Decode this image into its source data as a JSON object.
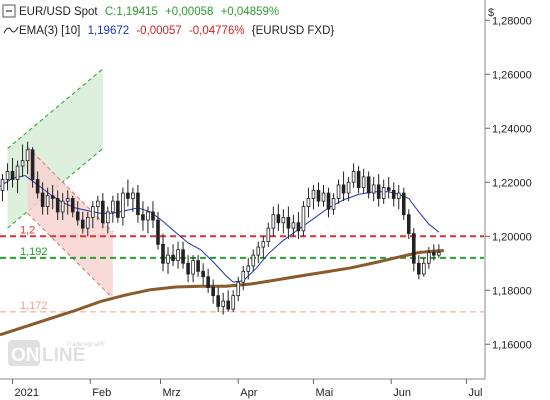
{
  "legend": {
    "line1": {
      "name": "EUR/USD Spot",
      "quote": "C:1,19415",
      "change": "+0,00058",
      "change_pct": "+0,04859%",
      "quote_color": "#2e9e2e"
    },
    "line2": {
      "name": "EMA(3) [10]",
      "value": "1,19672",
      "change": "-0,00057",
      "change_pct": "-0,04776%",
      "symbol": "{EURUSD FXD}",
      "value_color": "#1a2fb8",
      "change_color": "#d21f1f"
    }
  },
  "watermark": {
    "line1": "ON",
    "line2": "LINE",
    "small": "Tradesignal®"
  },
  "chart_data": {
    "type": "candlestick",
    "currency_label": "$",
    "y_ticks": [
      {
        "value": 1.28,
        "label": "1,28000"
      },
      {
        "value": 1.26,
        "label": "1,26000"
      },
      {
        "value": 1.24,
        "label": "1,24000"
      },
      {
        "value": 1.22,
        "label": "1,22000"
      },
      {
        "value": 1.2,
        "label": "1,20000"
      },
      {
        "value": 1.18,
        "label": "1,18000"
      },
      {
        "value": 1.16,
        "label": "1,16000"
      }
    ],
    "ylim": [
      1.1475,
      1.2875
    ],
    "x_ticks": [
      {
        "label": "2021",
        "day": 0
      },
      {
        "label": "Feb",
        "day": 31
      },
      {
        "label": "Mrz",
        "day": 59
      },
      {
        "label": "Apr",
        "day": 90
      },
      {
        "label": "Mai",
        "day": 120
      },
      {
        "label": "Jun",
        "day": 151
      },
      {
        "label": "Jul",
        "day": 181
      }
    ],
    "xlim": [
      -5,
      188
    ],
    "levels": [
      {
        "value": 1.2,
        "label": "1,2",
        "color": "#e03030"
      },
      {
        "value": 1.192,
        "label": "1,192",
        "color": "#22a02a"
      },
      {
        "value": 1.172,
        "label": "1,172",
        "color": "#f0a090"
      }
    ],
    "channels": [
      {
        "kind": "up",
        "x1": -2,
        "y1": 1.203,
        "x2": 36,
        "y2": 1.2325,
        "width": 0.0295,
        "color": "#22a02a",
        "fill": "#d4ecd4"
      },
      {
        "kind": "down",
        "x1": 6,
        "y1": 1.233,
        "x2": 40,
        "y2": 1.2015,
        "width": 0.0245,
        "color": "#e07070",
        "fill": "#f6d2d0"
      }
    ],
    "ema_fast": [
      [
        -5,
        1.2185
      ],
      [
        0,
        1.2215
      ],
      [
        5,
        1.2225
      ],
      [
        10,
        1.219
      ],
      [
        15,
        1.2155
      ],
      [
        20,
        1.2125
      ],
      [
        25,
        1.2105
      ],
      [
        30,
        1.2095
      ],
      [
        35,
        1.2085
      ],
      [
        40,
        1.2085
      ],
      [
        45,
        1.2095
      ],
      [
        50,
        1.2105
      ],
      [
        55,
        1.209
      ],
      [
        60,
        1.2055
      ],
      [
        65,
        1.2015
      ],
      [
        70,
        1.1975
      ],
      [
        75,
        1.195
      ],
      [
        80,
        1.1905
      ],
      [
        85,
        1.1855
      ],
      [
        88,
        1.183
      ],
      [
        92,
        1.1835
      ],
      [
        97,
        1.188
      ],
      [
        102,
        1.1935
      ],
      [
        108,
        1.1985
      ],
      [
        114,
        1.2025
      ],
      [
        120,
        1.2065
      ],
      [
        126,
        1.2105
      ],
      [
        132,
        1.2135
      ],
      [
        138,
        1.2155
      ],
      [
        144,
        1.2165
      ],
      [
        150,
        1.2165
      ],
      [
        154,
        1.2155
      ],
      [
        158,
        1.214
      ],
      [
        162,
        1.209
      ],
      [
        166,
        1.2045
      ],
      [
        170,
        1.2015
      ]
    ],
    "ema_slow": [
      [
        -5,
        1.1635
      ],
      [
        5,
        1.1665
      ],
      [
        15,
        1.1695
      ],
      [
        25,
        1.1725
      ],
      [
        35,
        1.1758
      ],
      [
        45,
        1.1782
      ],
      [
        55,
        1.1802
      ],
      [
        65,
        1.1812
      ],
      [
        75,
        1.1815
      ],
      [
        85,
        1.1815
      ],
      [
        95,
        1.1823
      ],
      [
        105,
        1.1838
      ],
      [
        115,
        1.1853
      ],
      [
        125,
        1.1868
      ],
      [
        135,
        1.1883
      ],
      [
        145,
        1.1903
      ],
      [
        155,
        1.1925
      ],
      [
        162,
        1.194
      ],
      [
        168,
        1.1945
      ],
      [
        172,
        1.1947
      ]
    ],
    "candles": [
      [
        -4,
        1.217,
        1.223,
        1.213,
        1.221
      ],
      [
        -2,
        1.221,
        1.227,
        1.217,
        1.224
      ],
      [
        0,
        1.224,
        1.229,
        1.218,
        1.221
      ],
      [
        2,
        1.221,
        1.228,
        1.216,
        1.226
      ],
      [
        4,
        1.226,
        1.234,
        1.222,
        1.228
      ],
      [
        6,
        1.228,
        1.235,
        1.223,
        1.232
      ],
      [
        8,
        1.232,
        1.233,
        1.218,
        1.221
      ],
      [
        10,
        1.221,
        1.224,
        1.214,
        1.216
      ],
      [
        12,
        1.216,
        1.22,
        1.208,
        1.211
      ],
      [
        14,
        1.211,
        1.218,
        1.208,
        1.215
      ],
      [
        16,
        1.215,
        1.219,
        1.21,
        1.214
      ],
      [
        18,
        1.214,
        1.217,
        1.206,
        1.209
      ],
      [
        20,
        1.209,
        1.216,
        1.206,
        1.213
      ],
      [
        22,
        1.213,
        1.217,
        1.208,
        1.214
      ],
      [
        24,
        1.214,
        1.215,
        1.207,
        1.209
      ],
      [
        26,
        1.209,
        1.213,
        1.204,
        1.206
      ],
      [
        28,
        1.206,
        1.209,
        1.201,
        1.203
      ],
      [
        30,
        1.203,
        1.209,
        1.2,
        1.207
      ],
      [
        32,
        1.207,
        1.213,
        1.203,
        1.211
      ],
      [
        34,
        1.211,
        1.215,
        1.206,
        1.213
      ],
      [
        36,
        1.213,
        1.216,
        1.203,
        1.205
      ],
      [
        38,
        1.205,
        1.211,
        1.201,
        1.209
      ],
      [
        40,
        1.209,
        1.215,
        1.205,
        1.213
      ],
      [
        42,
        1.213,
        1.216,
        1.205,
        1.207
      ],
      [
        44,
        1.207,
        1.218,
        1.204,
        1.216
      ],
      [
        46,
        1.216,
        1.221,
        1.211,
        1.214
      ],
      [
        48,
        1.214,
        1.218,
        1.209,
        1.216
      ],
      [
        50,
        1.216,
        1.219,
        1.205,
        1.208
      ],
      [
        52,
        1.208,
        1.213,
        1.202,
        1.206
      ],
      [
        54,
        1.206,
        1.211,
        1.201,
        1.209
      ],
      [
        56,
        1.209,
        1.213,
        1.203,
        1.206
      ],
      [
        58,
        1.206,
        1.209,
        1.195,
        1.197
      ],
      [
        60,
        1.197,
        1.201,
        1.187,
        1.19
      ],
      [
        62,
        1.19,
        1.196,
        1.186,
        1.193
      ],
      [
        64,
        1.193,
        1.197,
        1.189,
        1.191
      ],
      [
        66,
        1.191,
        1.198,
        1.188,
        1.195
      ],
      [
        68,
        1.195,
        1.198,
        1.188,
        1.19
      ],
      [
        70,
        1.19,
        1.193,
        1.183,
        1.186
      ],
      [
        72,
        1.186,
        1.193,
        1.183,
        1.191
      ],
      [
        74,
        1.191,
        1.193,
        1.185,
        1.187
      ],
      [
        76,
        1.187,
        1.19,
        1.182,
        1.185
      ],
      [
        78,
        1.185,
        1.188,
        1.179,
        1.181
      ],
      [
        80,
        1.181,
        1.184,
        1.175,
        1.178
      ],
      [
        82,
        1.178,
        1.181,
        1.172,
        1.174
      ],
      [
        84,
        1.174,
        1.179,
        1.171,
        1.176
      ],
      [
        86,
        1.176,
        1.18,
        1.172,
        1.173
      ],
      [
        88,
        1.173,
        1.18,
        1.172,
        1.178
      ],
      [
        90,
        1.178,
        1.185,
        1.176,
        1.183
      ],
      [
        92,
        1.183,
        1.189,
        1.18,
        1.187
      ],
      [
        94,
        1.187,
        1.192,
        1.184,
        1.189
      ],
      [
        96,
        1.189,
        1.195,
        1.187,
        1.193
      ],
      [
        98,
        1.193,
        1.198,
        1.19,
        1.196
      ],
      [
        100,
        1.196,
        1.2,
        1.192,
        1.198
      ],
      [
        102,
        1.198,
        1.205,
        1.196,
        1.203
      ],
      [
        104,
        1.203,
        1.211,
        1.2,
        1.208
      ],
      [
        106,
        1.208,
        1.212,
        1.202,
        1.205
      ],
      [
        108,
        1.205,
        1.21,
        1.201,
        1.207
      ],
      [
        110,
        1.207,
        1.211,
        1.199,
        1.203
      ],
      [
        112,
        1.203,
        1.208,
        1.2,
        1.205
      ],
      [
        114,
        1.205,
        1.209,
        1.199,
        1.202
      ],
      [
        116,
        1.202,
        1.213,
        1.2,
        1.211
      ],
      [
        118,
        1.211,
        1.218,
        1.207,
        1.214
      ],
      [
        120,
        1.214,
        1.219,
        1.21,
        1.217
      ],
      [
        122,
        1.217,
        1.22,
        1.211,
        1.213
      ],
      [
        124,
        1.213,
        1.219,
        1.211,
        1.216
      ],
      [
        126,
        1.216,
        1.218,
        1.207,
        1.21
      ],
      [
        128,
        1.21,
        1.216,
        1.208,
        1.214
      ],
      [
        130,
        1.214,
        1.221,
        1.212,
        1.219
      ],
      [
        132,
        1.219,
        1.224,
        1.213,
        1.216
      ],
      [
        134,
        1.216,
        1.222,
        1.213,
        1.22
      ],
      [
        136,
        1.22,
        1.227,
        1.218,
        1.224
      ],
      [
        138,
        1.224,
        1.226,
        1.216,
        1.218
      ],
      [
        140,
        1.218,
        1.225,
        1.216,
        1.222
      ],
      [
        142,
        1.222,
        1.224,
        1.214,
        1.216
      ],
      [
        144,
        1.216,
        1.222,
        1.213,
        1.219
      ],
      [
        146,
        1.219,
        1.223,
        1.211,
        1.214
      ],
      [
        148,
        1.214,
        1.221,
        1.212,
        1.218
      ],
      [
        150,
        1.218,
        1.222,
        1.214,
        1.217
      ],
      [
        152,
        1.217,
        1.22,
        1.211,
        1.214
      ],
      [
        154,
        1.214,
        1.219,
        1.21,
        1.216
      ],
      [
        156,
        1.216,
        1.218,
        1.206,
        1.208
      ],
      [
        158,
        1.208,
        1.21,
        1.199,
        1.201
      ],
      [
        160,
        1.201,
        1.203,
        1.187,
        1.19
      ],
      [
        162,
        1.19,
        1.193,
        1.184,
        1.186
      ],
      [
        164,
        1.186,
        1.192,
        1.185,
        1.19
      ],
      [
        166,
        1.19,
        1.196,
        1.188,
        1.194
      ],
      [
        168,
        1.194,
        1.197,
        1.191,
        1.193
      ],
      [
        170,
        1.193,
        1.197,
        1.192,
        1.194
      ]
    ]
  }
}
